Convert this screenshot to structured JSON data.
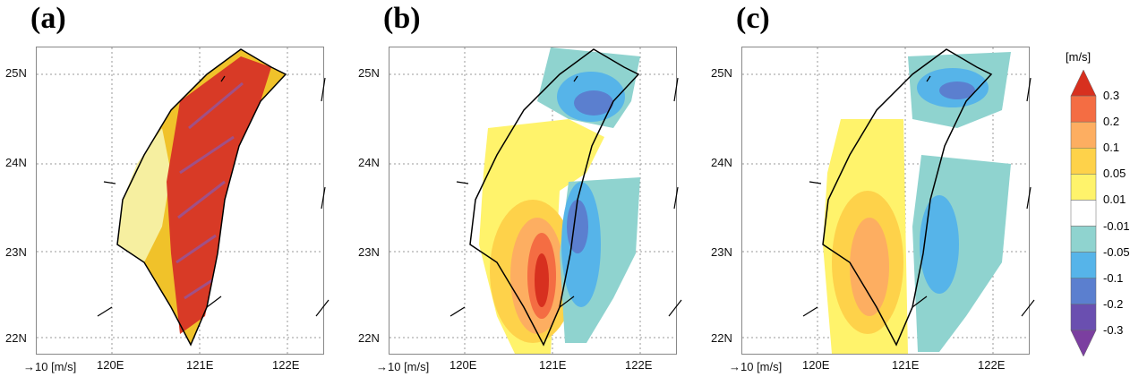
{
  "panels": [
    {
      "label": "(a)",
      "ref": "→10 [m/s]"
    },
    {
      "label": "(b)",
      "ref": "→10 [m/s]"
    },
    {
      "label": "(c)",
      "ref": "→10 [m/s]"
    }
  ],
  "lat_labels": [
    "25N",
    "24N",
    "23N",
    "22N"
  ],
  "lon_labels": [
    "120E",
    "121E",
    "122E"
  ],
  "colorbar": {
    "unit": "[m/s]",
    "ticks": [
      "0.3",
      "0.2",
      "0.1",
      "0.05",
      "0.01",
      "-0.01",
      "-0.05",
      "-0.1",
      "-0.2",
      "-0.3"
    ],
    "colors": [
      "#d7301f",
      "#f46d43",
      "#fdae61",
      "#fed24a",
      "#fff36b",
      "#ffffff",
      "#8fd3cf",
      "#56b4e9",
      "#5b7fcf",
      "#6a4fb0",
      "#7b3fa0"
    ]
  }
}
